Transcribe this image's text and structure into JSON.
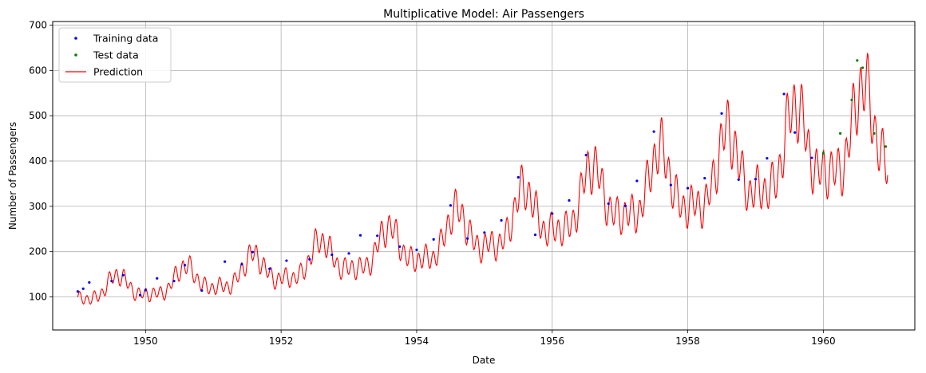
{
  "chart_data": {
    "type": "line",
    "title": "Multiplicative Model: Air Passengers",
    "xlabel": "Date",
    "ylabel": "Number of Passengers",
    "xlim": [
      1948.63,
      1961.35
    ],
    "ylim": [
      27,
      708
    ],
    "xticks": [
      1950,
      1952,
      1954,
      1956,
      1958,
      1960
    ],
    "yticks": [
      100,
      200,
      300,
      400,
      500,
      600,
      700
    ],
    "grid": true,
    "legend_position": "top-left",
    "legend": [
      {
        "label": "Training data",
        "color": "#0000ff",
        "marker": "dot"
      },
      {
        "label": "Test data",
        "color": "#008000",
        "marker": "dot"
      },
      {
        "label": "Prediction",
        "color": "#ff0000",
        "marker": "line"
      }
    ],
    "series": [
      {
        "name": "Training data",
        "color": "#0000ff",
        "x": [
          1949.0,
          1949.08,
          1949.17,
          1949.5,
          1949.67,
          1949.92,
          1950.0,
          1950.17,
          1950.42,
          1950.58,
          1950.83,
          1951.17,
          1951.42,
          1951.58,
          1951.83,
          1952.08,
          1952.42,
          1952.75,
          1953.0,
          1953.17,
          1953.42,
          1953.75,
          1954.0,
          1954.25,
          1954.5,
          1954.75,
          1955.0,
          1955.25,
          1955.5,
          1955.75,
          1956.0,
          1956.25,
          1956.5,
          1956.83,
          1957.08,
          1957.25,
          1957.5,
          1957.75,
          1958.0,
          1958.25,
          1958.5,
          1958.75,
          1959.0,
          1959.17,
          1959.42,
          1959.58,
          1959.83
        ],
        "values": [
          112,
          118,
          132,
          135,
          148,
          104,
          115,
          141,
          135,
          170,
          114,
          178,
          172,
          199,
          162,
          180,
          183,
          193,
          196,
          236,
          235,
          211,
          204,
          227,
          302,
          229,
          242,
          269,
          364,
          237,
          284,
          313,
          413,
          306,
          301,
          356,
          465,
          347,
          340,
          362,
          505,
          359,
          360,
          406,
          548,
          463,
          407
        ]
      },
      {
        "name": "Test data",
        "color": "#008000",
        "x": [
          1960.0,
          1960.25,
          1960.42,
          1960.5,
          1960.58,
          1960.75,
          1960.92
        ],
        "values": [
          417,
          461,
          535,
          622,
          606,
          461,
          432
        ]
      },
      {
        "name": "Prediction",
        "color": "#ff0000",
        "base_knots": {
          "x": [
            1949.0,
            1950.0,
            1951.0,
            1952.0,
            1953.0,
            1954.0,
            1955.0,
            1956.0,
            1957.0,
            1958.0,
            1959.0,
            1960.0,
            1960.95
          ],
          "values": [
            110,
            122,
            140,
            162,
            188,
            210,
            245,
            285,
            325,
            345,
            385,
            435,
            455
          ]
        },
        "seasonal_amplitude": 0.2,
        "fast_amplitude": 0.12,
        "samples_per_year": 110
      }
    ]
  }
}
